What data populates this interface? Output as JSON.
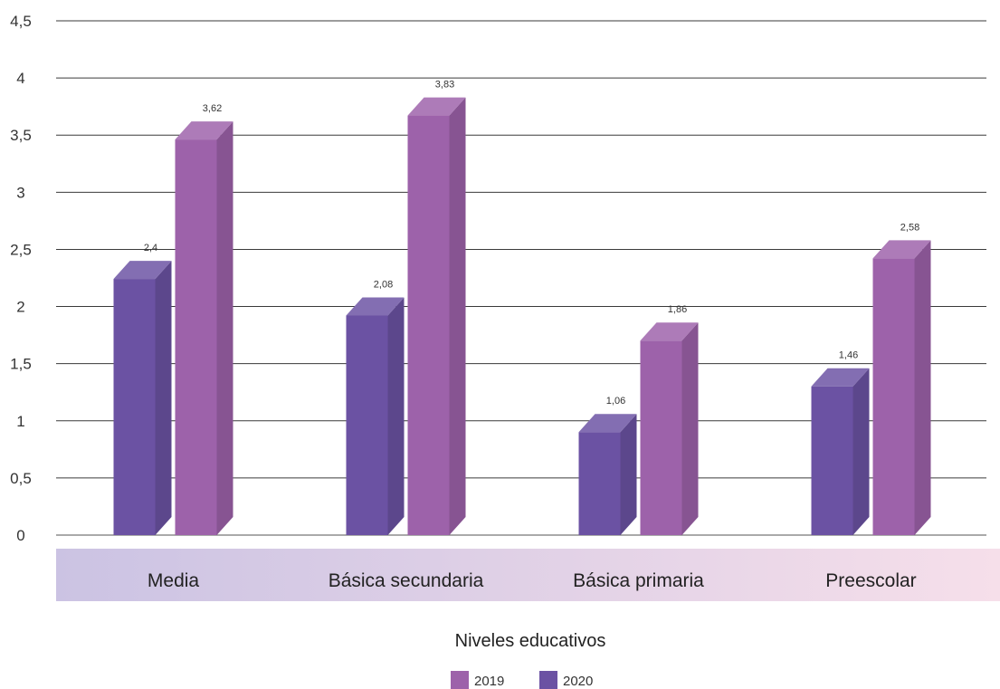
{
  "chart_data": {
    "type": "bar",
    "title": "",
    "xlabel": "Niveles educativos",
    "ylabel": "",
    "ylim": [
      0,
      4.5
    ],
    "yticks": [
      "0",
      "0,5",
      "1",
      "1,5",
      "2",
      "2,5",
      "3",
      "3,5",
      "4",
      "4,5"
    ],
    "grid": true,
    "legend_position": "bottom",
    "categories": [
      "Media",
      "Básica secundaria",
      "Básica primaria",
      "Preescolar"
    ],
    "series": [
      {
        "name": "2020",
        "values": [
          2.4,
          2.08,
          1.06,
          1.46
        ],
        "labels": [
          "2,4",
          "2,08",
          "1,06",
          "1,46"
        ],
        "color": "#6b52a3"
      },
      {
        "name": "2019",
        "values": [
          3.62,
          3.83,
          1.86,
          2.58
        ],
        "labels": [
          "3,62",
          "3,83",
          "1,86",
          "2,58"
        ],
        "color": "#9d62aa"
      }
    ],
    "legend_order": [
      "2019",
      "2020"
    ]
  }
}
